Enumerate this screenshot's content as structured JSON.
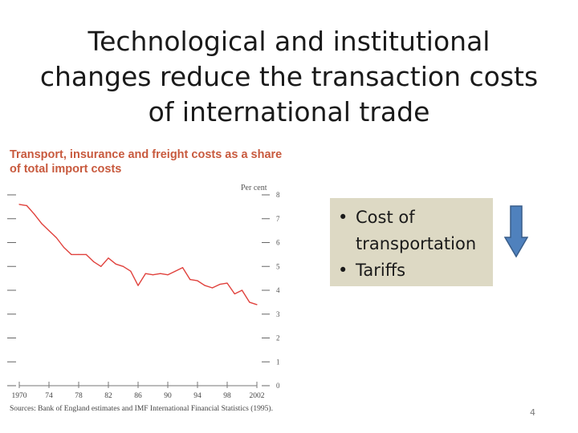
{
  "slide": {
    "title": "Technological and institutional\nchanges reduce the transaction costs\nof international trade",
    "bullets": [
      "Cost of\ntransportation",
      "Tariffs"
    ],
    "page_number": "4",
    "arrow_icon": "down-arrow-icon",
    "arrow_color": "#4f81bd",
    "box_color": "#ddd9c4"
  },
  "chart_data": {
    "type": "line",
    "title": "Transport, insurance and freight costs as a share\nof total import costs",
    "ylabel": "Per cent",
    "ylim": [
      0,
      8
    ],
    "yticks": [
      "8",
      "7",
      "6",
      "5",
      "4",
      "3",
      "2",
      "1",
      "0"
    ],
    "xlim": [
      1970,
      2002
    ],
    "xticks": [
      "1970",
      "74",
      "78",
      "82",
      "86",
      "90",
      "94",
      "98",
      "2002"
    ],
    "series": [
      {
        "color": "#e0413c",
        "x": [
          1970,
          1971,
          1972,
          1973,
          1974,
          1975,
          1976,
          1977,
          1978,
          1979,
          1980,
          1981,
          1982,
          1983,
          1984,
          1985,
          1986,
          1987,
          1988,
          1989,
          1990,
          1991,
          1992,
          1993,
          1994,
          1995,
          1996,
          1997,
          1998,
          1999,
          2000,
          2001,
          2002
        ],
        "y": [
          7.6,
          7.55,
          7.2,
          6.8,
          6.5,
          6.2,
          5.8,
          5.5,
          5.5,
          5.5,
          5.2,
          5.0,
          5.35,
          5.1,
          5.0,
          4.8,
          4.2,
          4.7,
          4.65,
          4.7,
          4.65,
          4.8,
          4.95,
          4.45,
          4.4,
          4.2,
          4.1,
          4.25,
          4.3,
          3.85,
          4.0,
          3.5,
          3.4
        ]
      }
    ],
    "source_label": "Sources:",
    "source_text": "Bank of England estimates and IMF International Financial Statistics (1995)."
  }
}
